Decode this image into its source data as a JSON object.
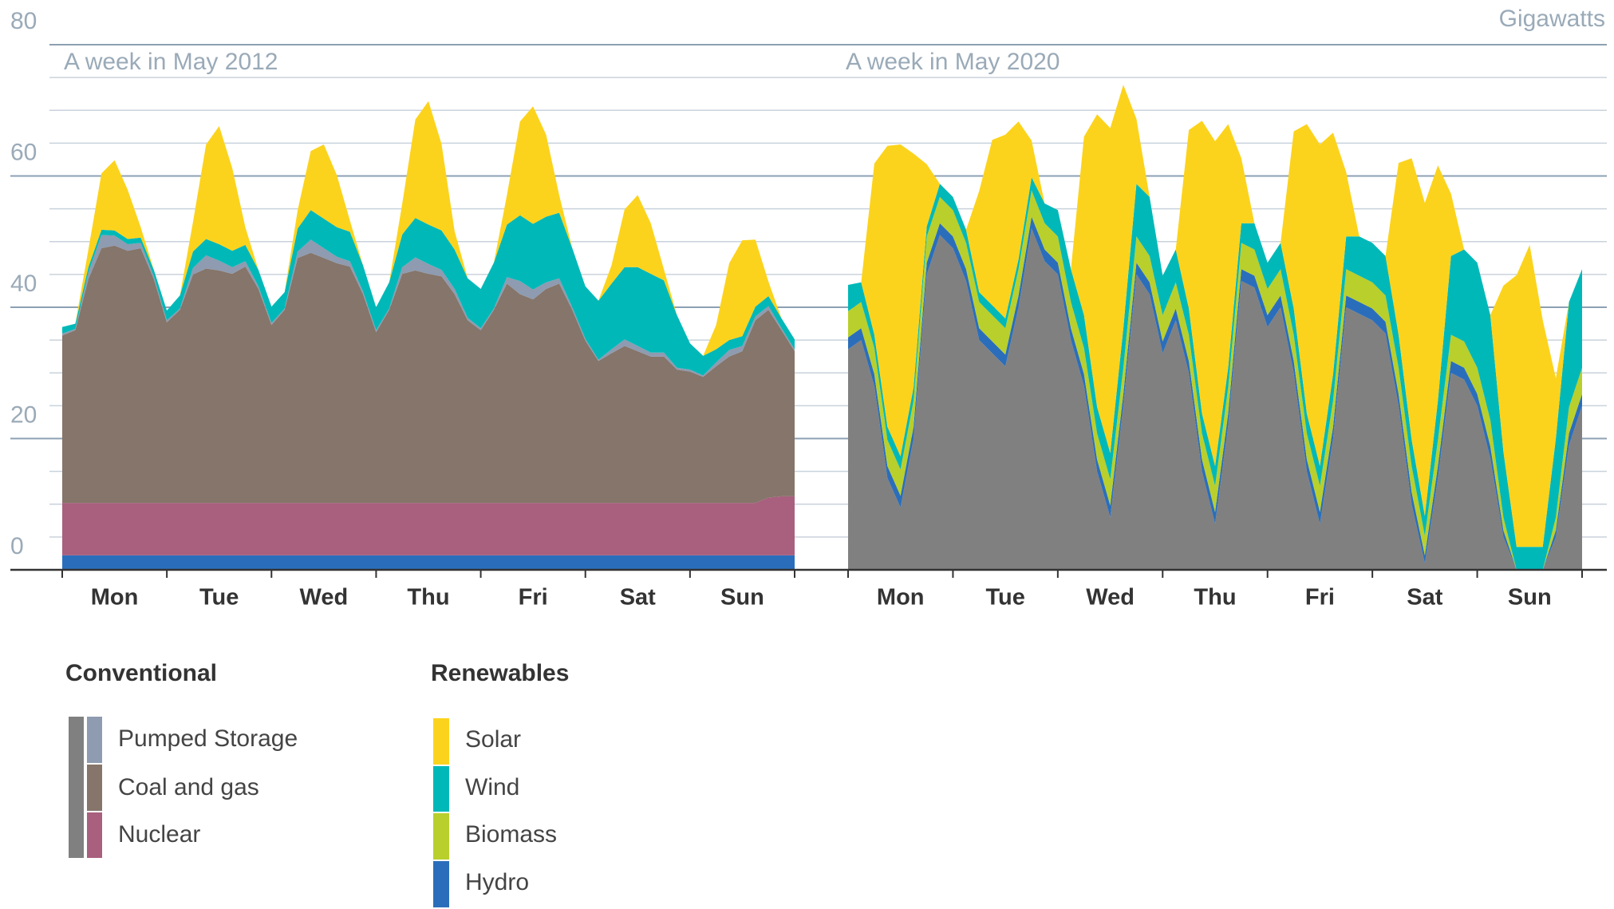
{
  "unit_label": "Gigawatts",
  "legend_renewables_title": "Renewables",
  "chart_data": [
    {
      "type": "area",
      "stacked": true,
      "subtitle": "A week in May 2012",
      "x": [
        0,
        3,
        6,
        9,
        12,
        15,
        18,
        21,
        24,
        27,
        30,
        33,
        36,
        39,
        42,
        45,
        48,
        51,
        54,
        57,
        60,
        63,
        66,
        69,
        72,
        75,
        78,
        81,
        84,
        87,
        90,
        93,
        96,
        99,
        102,
        105,
        108,
        111,
        114,
        117,
        120,
        123,
        126,
        129,
        132,
        135,
        138,
        141,
        144,
        147,
        150,
        153,
        156,
        159,
        162,
        165,
        168
      ],
      "xlim": [
        0,
        168
      ],
      "xticks": [
        {
          "value": 12,
          "label": "Mon"
        },
        {
          "value": 36,
          "label": "Tue"
        },
        {
          "value": 60,
          "label": "Wed"
        },
        {
          "value": 84,
          "label": "Thu"
        },
        {
          "value": 108,
          "label": "Fri"
        },
        {
          "value": 132,
          "label": "Sat"
        },
        {
          "value": 156,
          "label": "Sun"
        }
      ],
      "minor_xticks": [
        0,
        24,
        48,
        72,
        96,
        120,
        144,
        168
      ],
      "ylim": [
        0,
        80
      ],
      "yticks": [
        0,
        20,
        40,
        60,
        80
      ],
      "minor_yticks": [
        5,
        10,
        15,
        25,
        30,
        35,
        45,
        50,
        55,
        65,
        70,
        75
      ],
      "grid": true,
      "series": [
        {
          "name": "Hydro",
          "color": "#2a6ebb",
          "values": [
            2.2,
            2.2,
            2.2,
            2.2,
            2.2,
            2.2,
            2.2,
            2.2,
            2.2,
            2.2,
            2.2,
            2.2,
            2.2,
            2.2,
            2.2,
            2.2,
            2.2,
            2.2,
            2.2,
            2.2,
            2.2,
            2.2,
            2.2,
            2.2,
            2.2,
            2.2,
            2.2,
            2.2,
            2.2,
            2.2,
            2.2,
            2.2,
            2.2,
            2.2,
            2.2,
            2.2,
            2.2,
            2.2,
            2.2,
            2.2,
            2.2,
            2.2,
            2.2,
            2.2,
            2.2,
            2.2,
            2.2,
            2.2,
            2.2,
            2.2,
            2.2,
            2.2,
            2.2,
            2.2,
            2.2,
            2.2,
            2.2
          ]
        },
        {
          "name": "Nuclear",
          "color": "#a8607e",
          "values": [
            8,
            8,
            8,
            8,
            8,
            8,
            8,
            8,
            8,
            8,
            8,
            8,
            8,
            8,
            8,
            8,
            8,
            8,
            8,
            8,
            8,
            8,
            8,
            8,
            8,
            8,
            8,
            8,
            8,
            8,
            8,
            8,
            8,
            8,
            8,
            8,
            8,
            8,
            8,
            8,
            8,
            8,
            8,
            8,
            8,
            8,
            8,
            8,
            8,
            8,
            8,
            8,
            8,
            8,
            8.8,
            9,
            9
          ]
        },
        {
          "name": "Coal and gas",
          "color": "#85756a",
          "values": [
            25.5,
            26.3,
            34.1,
            38.8,
            39.2,
            38.4,
            38.8,
            34.1,
            27.5,
            29.4,
            34.8,
            35.7,
            35.4,
            34.9,
            36.0,
            32.6,
            27.1,
            29.4,
            37.3,
            38.1,
            37.3,
            36.5,
            36.0,
            31.8,
            26.0,
            29.4,
            34.9,
            35.4,
            34.9,
            34.5,
            31.8,
            27.8,
            26.3,
            29.4,
            33.4,
            31.8,
            31.0,
            32.6,
            33.4,
            29.4,
            24.7,
            21.6,
            22.8,
            23.9,
            23.1,
            22.3,
            22.3,
            20.3,
            20.0,
            19.2,
            20.8,
            22.3,
            23.1,
            27.8,
            28.6,
            25.3,
            22.1
          ]
        },
        {
          "name": "Pumped Storage",
          "color": "#8e9bb0",
          "values": [
            0.3,
            0.2,
            1,
            2,
            1.5,
            1,
            0.8,
            0.4,
            0.3,
            0.2,
            1,
            2,
            1.5,
            1,
            0.8,
            0.4,
            0.3,
            0.2,
            1,
            2,
            1.5,
            1,
            0.8,
            0.4,
            0.3,
            0.2,
            1,
            2,
            1.5,
            1,
            0.8,
            0.4,
            0.3,
            0.2,
            1,
            2,
            1.5,
            1,
            0.8,
            0.4,
            0.3,
            0.2,
            0.6,
            1,
            0.8,
            0.6,
            0.6,
            0.3,
            0.3,
            0.2,
            0.6,
            1,
            0.8,
            0.6,
            0.6,
            0.3,
            0.3
          ]
        },
        {
          "name": "Wind",
          "color": "#00b8b8",
          "values": [
            1,
            0.8,
            0.8,
            0.8,
            0.8,
            0.8,
            0.8,
            1,
            1.5,
            2,
            2.5,
            2.5,
            2.5,
            2.5,
            2.5,
            2.5,
            2.5,
            2.5,
            3.5,
            4.5,
            4.5,
            4.5,
            4.5,
            4,
            3.5,
            4,
            5,
            6,
            6,
            6,
            6,
            6,
            6,
            7,
            8,
            10,
            10,
            10,
            10,
            9,
            8,
            9,
            10,
            11,
            12,
            12,
            11,
            8,
            4,
            3,
            2,
            1.5,
            1.5,
            1.5,
            1.5,
            1.5,
            1.5
          ]
        },
        {
          "name": "Solar",
          "color": "#fcd31c",
          "values": [
            0,
            0,
            2.7,
            8.6,
            10.7,
            7.5,
            1.6,
            0,
            0,
            0,
            4.5,
            14.4,
            18,
            12.6,
            2.7,
            0,
            0,
            0,
            2.8,
            9,
            11.3,
            7.9,
            1.7,
            0,
            0,
            0,
            4.7,
            15,
            18.8,
            13.2,
            2.8,
            0,
            0,
            0,
            4.5,
            14.3,
            17.9,
            12.5,
            2.7,
            0,
            0,
            0,
            2.8,
            8.8,
            11,
            7.7,
            1.7,
            0,
            0,
            0,
            3.7,
            11.7,
            14.6,
            10.2,
            2.2,
            0,
            0
          ]
        }
      ]
    },
    {
      "type": "area",
      "stacked": true,
      "subtitle": "A week in May 2020",
      "x": [
        0,
        3,
        6,
        9,
        12,
        15,
        18,
        21,
        24,
        27,
        30,
        33,
        36,
        39,
        42,
        45,
        48,
        51,
        54,
        57,
        60,
        63,
        66,
        69,
        72,
        75,
        78,
        81,
        84,
        87,
        90,
        93,
        96,
        99,
        102,
        105,
        108,
        111,
        114,
        117,
        120,
        123,
        126,
        129,
        132,
        135,
        138,
        141,
        144,
        147,
        150,
        153,
        156,
        159,
        162,
        165,
        168
      ],
      "xlim": [
        0,
        168
      ],
      "xticks": [
        {
          "value": 12,
          "label": "Mon"
        },
        {
          "value": 36,
          "label": "Tue"
        },
        {
          "value": 60,
          "label": "Wed"
        },
        {
          "value": 84,
          "label": "Thu"
        },
        {
          "value": 108,
          "label": "Fri"
        },
        {
          "value": 132,
          "label": "Sat"
        },
        {
          "value": 156,
          "label": "Sun"
        }
      ],
      "minor_xticks": [
        0,
        24,
        48,
        72,
        96,
        120,
        144,
        168
      ],
      "ylim": [
        0,
        80
      ],
      "series": [
        {
          "name": "Conventional",
          "color": "#808080",
          "values": [
            33.6,
            35,
            28,
            14,
            9.5,
            20,
            45,
            51,
            49,
            44,
            35,
            33,
            31,
            40,
            52,
            47,
            45,
            35,
            28,
            15,
            8,
            25,
            45,
            42,
            33,
            38,
            30,
            15,
            7,
            22,
            44,
            43,
            37,
            40,
            30,
            15,
            7,
            20,
            40,
            39,
            38,
            36,
            25,
            10,
            1,
            14,
            30,
            29,
            25,
            17,
            5,
            0,
            0,
            0,
            5,
            19,
            25
          ]
        },
        {
          "name": "Hydro",
          "color": "#2a6ebb",
          "values": [
            1.8,
            1.8,
            1.8,
            1.8,
            1.8,
            1.8,
            1.8,
            1.8,
            1.8,
            1.8,
            1.8,
            1.8,
            1.8,
            1.8,
            1.8,
            1.8,
            1.8,
            1.8,
            1.8,
            1.8,
            1.8,
            1.8,
            1.8,
            1.8,
            1.8,
            1.8,
            1.8,
            1.8,
            1.8,
            1.8,
            1.8,
            1.8,
            1.8,
            1.8,
            1.8,
            1.8,
            1.8,
            1.8,
            1.8,
            1.8,
            1.8,
            1.8,
            1.8,
            1.8,
            1.2,
            1.8,
            1.8,
            1.8,
            1.8,
            1.8,
            1,
            0,
            0,
            0,
            1,
            1.8,
            1.8
          ]
        },
        {
          "name": "Biomass",
          "color": "#b9cf2c",
          "values": [
            4,
            4,
            4,
            4,
            4,
            4,
            4,
            4,
            4,
            4,
            4,
            4,
            4,
            4,
            4,
            4,
            4,
            4,
            4,
            4,
            4,
            4,
            4,
            4,
            4,
            4,
            4,
            4,
            4,
            4,
            4,
            4,
            4,
            4,
            4,
            4,
            4,
            4,
            4,
            4,
            4,
            4,
            4,
            4,
            3,
            4,
            4,
            4,
            4,
            4,
            2,
            0,
            0,
            0,
            2,
            4,
            4
          ]
        },
        {
          "name": "Wind",
          "color": "#00b8b8",
          "values": [
            4,
            3,
            2,
            2,
            2,
            2,
            1.5,
            2,
            2,
            2,
            1.5,
            1.5,
            1.5,
            1.5,
            2,
            3,
            4,
            5,
            5,
            4,
            4,
            6,
            8,
            9,
            6,
            5,
            4,
            3,
            3,
            3,
            3,
            4,
            4,
            4,
            4,
            3,
            3,
            4,
            5,
            6,
            6,
            6,
            5,
            4,
            3,
            6,
            12,
            14,
            16,
            16,
            10,
            3.5,
            3.5,
            3.5,
            12,
            16,
            15
          ]
        },
        {
          "name": "Solar",
          "color": "#fcd31c",
          "values": [
            0,
            0,
            26.1,
            42.8,
            47.5,
            35.6,
            9.5,
            0,
            0,
            0,
            15.4,
            25.2,
            28,
            21,
            5.6,
            0,
            0,
            0,
            27.2,
            44.6,
            49.5,
            37.1,
            9.9,
            0,
            0,
            0,
            27.2,
            44.6,
            49.5,
            37.1,
            9.9,
            0,
            0,
            0,
            27,
            44.1,
            49,
            36.8,
            9.8,
            0,
            0,
            0,
            26.2,
            42.9,
            47.7,
            35.8,
            9.5,
            0,
            0,
            0,
            25.3,
            41.4,
            46,
            34.5,
            9.2,
            0,
            0
          ]
        }
      ]
    }
  ]
}
